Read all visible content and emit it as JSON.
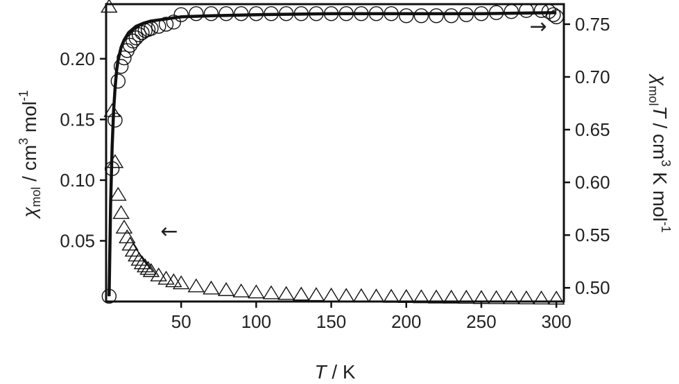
{
  "chart_data": {
    "type": "scatter",
    "x_axis": {
      "label": "T / K",
      "label_italic_part": "T",
      "label_rest": " / K",
      "range": [
        0,
        305
      ],
      "ticks": [
        50,
        100,
        150,
        200,
        250,
        300
      ],
      "tick_labels": [
        "50",
        "100",
        "150",
        "200",
        "250",
        "300"
      ]
    },
    "y_left": {
      "label_symbol": "χ",
      "label_sub": "mol",
      "label_text": " / cm",
      "label_sup": "3",
      "label_tail": " mol",
      "label_sup2": "-1",
      "range": [
        0.0,
        0.245
      ],
      "ticks": [
        0.05,
        0.1,
        0.15,
        0.2
      ],
      "tick_labels": [
        "0.05",
        "0.10",
        "0.15",
        "0.20"
      ]
    },
    "y_right": {
      "label_symbol": "χ",
      "label_sub": "mol",
      "label_T": "T",
      "label_text": " / cm",
      "label_sup": "3",
      "label_tail": " K mol",
      "label_sup2": "-1",
      "range": [
        0.487,
        0.769
      ],
      "ticks": [
        0.5,
        0.55,
        0.6,
        0.65,
        0.7,
        0.75
      ],
      "tick_labels": [
        "0.50",
        "0.55",
        "0.60",
        "0.65",
        "0.70",
        "0.75"
      ]
    },
    "series": [
      {
        "marker": "triangle",
        "axis": "left",
        "curie_constant": 0.754,
        "x": [
          2,
          4,
          6,
          8,
          10,
          12,
          14,
          16,
          18,
          20,
          22,
          24,
          26,
          28,
          30,
          35,
          40,
          45,
          50,
          60,
          70,
          80,
          90,
          100,
          110,
          120,
          130,
          140,
          150,
          160,
          170,
          180,
          190,
          200,
          210,
          220,
          230,
          240,
          250,
          260,
          270,
          280,
          290,
          300
        ],
        "y": [
          0.243,
          0.157,
          0.115,
          0.088,
          0.073,
          0.061,
          0.053,
          0.047,
          0.042,
          0.038,
          0.0345,
          0.0316,
          0.0291,
          0.027,
          0.0252,
          0.0216,
          0.0189,
          0.0168,
          0.0151,
          0.0126,
          0.0108,
          0.0095,
          0.0084,
          0.0076,
          0.0069,
          0.0063,
          0.0058,
          0.0054,
          0.005,
          0.0047,
          0.0045,
          0.0042,
          0.004,
          0.0038,
          0.0036,
          0.0034,
          0.0033,
          0.0032,
          0.003,
          0.0029,
          0.0028,
          0.0027,
          0.0026,
          0.0025
        ]
      },
      {
        "marker": "circle",
        "axis": "right",
        "x": [
          2,
          4,
          6,
          8,
          10,
          12,
          14,
          16,
          18,
          20,
          22,
          24,
          26,
          28,
          30,
          35,
          40,
          45,
          50,
          60,
          70,
          80,
          90,
          100,
          110,
          120,
          130,
          140,
          150,
          160,
          170,
          180,
          190,
          200,
          210,
          220,
          230,
          240,
          250,
          260,
          270,
          280,
          290,
          295,
          298,
          300
        ],
        "y": [
          0.492,
          0.613,
          0.659,
          0.696,
          0.71,
          0.718,
          0.725,
          0.73,
          0.734,
          0.737,
          0.74,
          0.742,
          0.744,
          0.745,
          0.746,
          0.748,
          0.75,
          0.752,
          0.759,
          0.76,
          0.76,
          0.76,
          0.76,
          0.76,
          0.76,
          0.76,
          0.76,
          0.76,
          0.76,
          0.76,
          0.76,
          0.76,
          0.76,
          0.758,
          0.758,
          0.758,
          0.758,
          0.759,
          0.76,
          0.761,
          0.762,
          0.763,
          0.763,
          0.762,
          0.759,
          0.757
        ]
      }
    ],
    "fit_curve": {
      "axis": "right",
      "x": [
        2,
        3,
        4,
        5,
        6,
        7,
        8,
        10,
        12,
        15,
        20,
        25,
        30,
        40,
        50,
        70,
        100,
        150,
        200,
        250,
        300
      ],
      "y": [
        0.492,
        0.58,
        0.634,
        0.668,
        0.69,
        0.706,
        0.716,
        0.728,
        0.735,
        0.742,
        0.748,
        0.751,
        0.753,
        0.755,
        0.757,
        0.758,
        0.759,
        0.76,
        0.76,
        0.76,
        0.761
      ]
    },
    "annotations": [
      {
        "text": "←",
        "x": 42,
        "y_axis": "left",
        "y": 0.058,
        "meaning": "triangles use left axis"
      },
      {
        "text": "→",
        "x": 288,
        "y_axis": "right",
        "y": 0.748,
        "meaning": "circles use right axis"
      }
    ],
    "grid": false,
    "legend": "none"
  }
}
